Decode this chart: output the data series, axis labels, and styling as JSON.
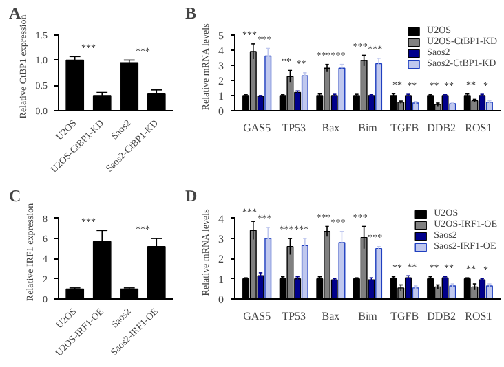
{
  "chart_data": [
    {
      "type": "bar",
      "title": "A",
      "ylabel": "Relative CtBP1 expression",
      "categories": [
        "U2OS",
        "U2OS-CtBP1-KD",
        "Saos2",
        "Saos2-CtBP1-KD"
      ],
      "values": [
        1.0,
        0.3,
        0.95,
        0.33
      ],
      "errors": [
        0.07,
        0.06,
        0.05,
        0.08
      ],
      "color": "#000000",
      "ylim": [
        0,
        1.5
      ],
      "yticks": [
        {
          "value": 0,
          "label": "0.0"
        },
        {
          "value": 0.5,
          "label": "0.5"
        },
        {
          "value": 1,
          "label": "1.0"
        },
        {
          "value": 1.5,
          "label": "1.5"
        }
      ],
      "annotations": [
        "***",
        "***"
      ]
    },
    {
      "type": "bar",
      "title": "B",
      "ylabel": "Relative mRNA levels",
      "categories": [
        "GAS5",
        "TP53",
        "Bax",
        "Bim",
        "TGFB",
        "DDB2",
        "ROS1"
      ],
      "series": [
        {
          "name": "U2OS",
          "color": "#000000",
          "values": [
            1.0,
            1.0,
            1.0,
            1.0,
            1.0,
            1.0,
            1.0
          ],
          "errors": [
            0.05,
            0.05,
            0.1,
            0.08,
            0.12,
            0.05,
            0.1
          ]
        },
        {
          "name": "U2OS-CtBP1-KD",
          "color": "#808080",
          "values": [
            3.9,
            2.25,
            2.8,
            3.3,
            0.55,
            0.4,
            0.65
          ],
          "errors": [
            0.5,
            0.4,
            0.25,
            0.35,
            0.08,
            0.1,
            0.1
          ]
        },
        {
          "name": "Saos2",
          "color": "#00008b",
          "values": [
            0.95,
            1.2,
            1.0,
            1.0,
            1.0,
            1.0,
            1.0
          ],
          "errors": [
            0.05,
            0.1,
            0.08,
            0.05,
            0.08,
            0.05,
            0.08
          ]
        },
        {
          "name": "Saos2-CtBP1-KD",
          "color": "#c0c8ee",
          "values": [
            3.6,
            2.3,
            2.8,
            3.1,
            0.5,
            0.45,
            0.55
          ],
          "errors": [
            0.5,
            0.2,
            0.25,
            0.35,
            0.1,
            0.05,
            0.1
          ]
        }
      ],
      "ylim": [
        0,
        5
      ],
      "yticks": [
        0,
        1,
        2,
        3,
        4,
        5
      ],
      "legend": "top right",
      "annotations": [
        "***",
        "***",
        "**",
        "**",
        "***",
        "***",
        "***",
        "***",
        "**",
        "**",
        "**",
        "**",
        "**",
        "*"
      ]
    },
    {
      "type": "bar",
      "title": "C",
      "ylabel": "Relative IRF1 expression",
      "categories": [
        "U2OS",
        "U2OS-IRF1-OE",
        "Saos2",
        "Saos2-IRF1-OE"
      ],
      "values": [
        1.0,
        5.7,
        1.0,
        5.2
      ],
      "errors": [
        0.1,
        1.1,
        0.1,
        0.8
      ],
      "color": "#000000",
      "ylim": [
        0,
        8
      ],
      "yticks": [
        0,
        2,
        4,
        6,
        8
      ],
      "annotations": [
        "***",
        "***"
      ]
    },
    {
      "type": "bar",
      "title": "D",
      "ylabel": "Relative mRNA levels",
      "categories": [
        "GAS5",
        "TP53",
        "Bax",
        "Bim",
        "TGFB",
        "DDB2",
        "ROS1"
      ],
      "series": [
        {
          "name": "U2OS",
          "color": "#000000",
          "values": [
            1.0,
            1.0,
            1.0,
            1.0,
            1.0,
            1.0,
            1.0
          ],
          "errors": [
            0.05,
            0.1,
            0.1,
            0.05,
            0.1,
            0.1,
            0.05
          ]
        },
        {
          "name": "U2OS-IRF1-OE",
          "color": "#808080",
          "values": [
            3.4,
            2.6,
            3.35,
            3.05,
            0.55,
            0.6,
            0.6
          ],
          "errors": [
            0.45,
            0.4,
            0.25,
            0.55,
            0.15,
            0.1,
            0.15
          ]
        },
        {
          "name": "Saos2",
          "color": "#00008b",
          "values": [
            1.15,
            1.0,
            0.95,
            0.95,
            1.05,
            1.05,
            0.95
          ],
          "errors": [
            0.15,
            0.1,
            0.05,
            0.1,
            0.1,
            0.05,
            0.05
          ]
        },
        {
          "name": "Saos2-IRF1-OE",
          "color": "#c0c8ee",
          "values": [
            3.0,
            2.65,
            2.8,
            2.5,
            0.55,
            0.65,
            0.65
          ],
          "errors": [
            0.55,
            0.35,
            0.55,
            0.1,
            0.1,
            0.1,
            0.1
          ]
        }
      ],
      "ylim": [
        0,
        4
      ],
      "yticks": [
        0,
        1,
        2,
        3,
        4
      ],
      "legend": "top right",
      "annotations": [
        "***",
        "***",
        "***",
        "***",
        "***",
        "***",
        "***",
        "***",
        "**",
        "**",
        "**",
        "**",
        "**",
        "*"
      ]
    }
  ]
}
